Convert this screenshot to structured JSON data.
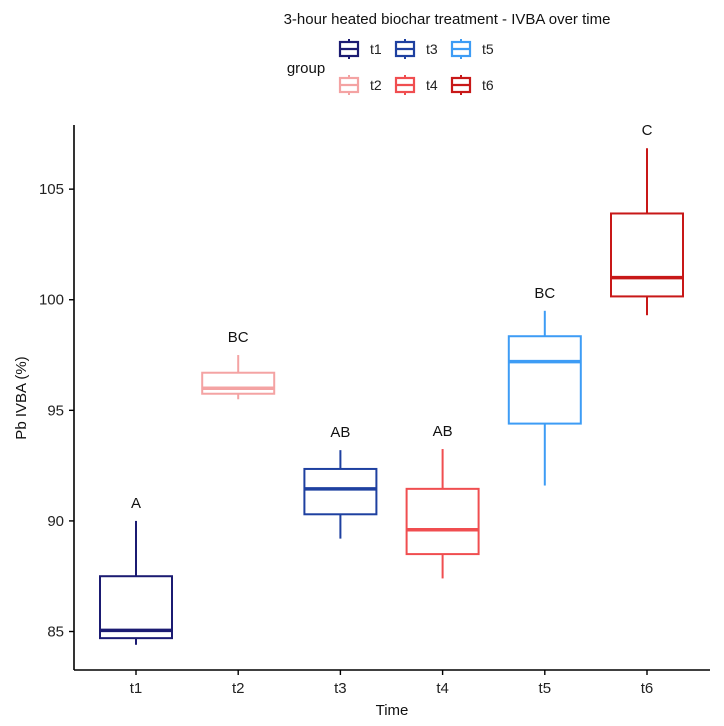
{
  "chart_data": {
    "type": "box",
    "title": "3-hour heated biochar treatment - IVBA over time",
    "xlabel": "Time",
    "ylabel": "Pb IVBA (%)",
    "ylim": [
      83.26,
      107.9
    ],
    "yticks": [
      85,
      90,
      95,
      100,
      105
    ],
    "categories": [
      "t1",
      "t2",
      "t3",
      "t4",
      "t5",
      "t6"
    ],
    "legend": {
      "title": "group",
      "placement": "top",
      "entries": [
        "t1",
        "t3",
        "t5",
        "t2",
        "t4",
        "t6"
      ]
    },
    "series": [
      {
        "name": "t1",
        "color": "#1b1b72",
        "min": 84.4,
        "q1": 84.7,
        "median": 85.05,
        "q3": 87.5,
        "max": 90.0,
        "label": "A"
      },
      {
        "name": "t2",
        "color": "#f4a3a3",
        "min": 95.5,
        "q1": 95.75,
        "median": 96.0,
        "q3": 96.7,
        "max": 97.5,
        "label": "BC"
      },
      {
        "name": "t3",
        "color": "#1e40a0",
        "min": 89.2,
        "q1": 90.3,
        "median": 91.45,
        "q3": 92.35,
        "max": 93.2,
        "label": "AB"
      },
      {
        "name": "t4",
        "color": "#f04e50",
        "min": 87.4,
        "q1": 88.5,
        "median": 89.6,
        "q3": 91.45,
        "max": 93.25,
        "label": "AB"
      },
      {
        "name": "t5",
        "color": "#3d9cf5",
        "min": 91.6,
        "q1": 94.4,
        "median": 97.2,
        "q3": 98.35,
        "max": 99.5,
        "label": "BC"
      },
      {
        "name": "t6",
        "color": "#c81818",
        "min": 99.3,
        "q1": 100.15,
        "median": 101.0,
        "q3": 103.9,
        "max": 106.85,
        "label": "C"
      }
    ]
  }
}
